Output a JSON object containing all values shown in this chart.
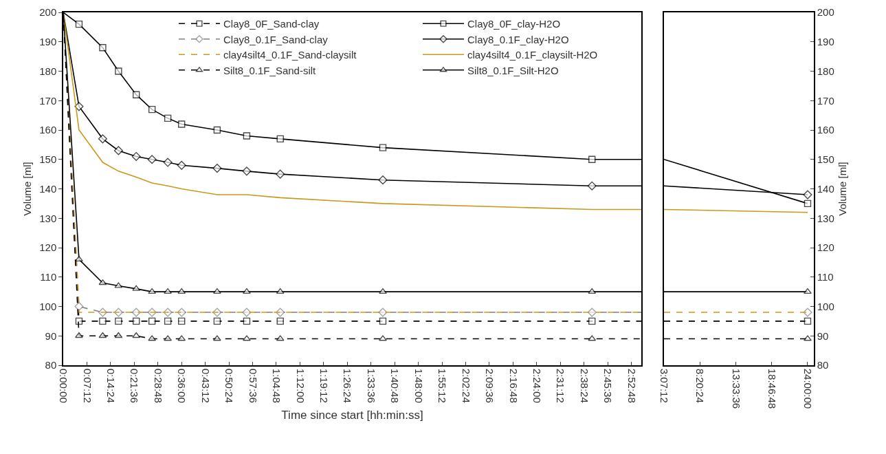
{
  "chart_data": [
    {
      "type": "line",
      "xlabel": "Time since start [hh:min:ss]",
      "ylabel": "Volume [ml]",
      "legend": "top",
      "xlim": [
        0,
        2.93
      ],
      "ylim": [
        80,
        200
      ],
      "yticks": [
        80,
        90,
        100,
        110,
        120,
        130,
        140,
        150,
        160,
        170,
        180,
        190,
        200
      ],
      "xticks": [
        {
          "value": 0,
          "label": "0:00:00"
        },
        {
          "value": 0.12,
          "label": "0:07:12"
        },
        {
          "value": 0.24,
          "label": "0:14:24"
        },
        {
          "value": 0.36,
          "label": "0:21:36"
        },
        {
          "value": 0.48,
          "label": "0:28:48"
        },
        {
          "value": 0.6,
          "label": "0:36:00"
        },
        {
          "value": 0.72,
          "label": "0:43:12"
        },
        {
          "value": 0.84,
          "label": "0:50:24"
        },
        {
          "value": 0.96,
          "label": "0:57:36"
        },
        {
          "value": 1.08,
          "label": "1:04:48"
        },
        {
          "value": 1.2,
          "label": "1:12:00"
        },
        {
          "value": 1.32,
          "label": "1:19:12"
        },
        {
          "value": 1.44,
          "label": "1:26:24"
        },
        {
          "value": 1.56,
          "label": "1:33:36"
        },
        {
          "value": 1.68,
          "label": "1:40:48"
        },
        {
          "value": 1.8,
          "label": "1:48:00"
        },
        {
          "value": 1.92,
          "label": "1:55:12"
        },
        {
          "value": 2.04,
          "label": "2:02:24"
        },
        {
          "value": 2.16,
          "label": "2:09:36"
        },
        {
          "value": 2.28,
          "label": "2:16:48"
        },
        {
          "value": 2.4,
          "label": "2:24:00"
        },
        {
          "value": 2.52,
          "label": "2:31:12"
        },
        {
          "value": 2.64,
          "label": "2:38:24"
        },
        {
          "value": 2.76,
          "label": "2:45:36"
        },
        {
          "value": 2.88,
          "label": "2:52:48"
        }
      ],
      "x": [
        0,
        0.08,
        0.2,
        0.28,
        0.37,
        0.45,
        0.53,
        0.6,
        0.78,
        0.93,
        1.1,
        1.62,
        2.68,
        2.93
      ],
      "series": [
        {
          "name": "Clay8_0F_Sand-clay",
          "color": "#000000",
          "line_style": "dashed",
          "marker": "square",
          "values": [
            200,
            95,
            95,
            95,
            95,
            95,
            95,
            95,
            95,
            95,
            95,
            95,
            95,
            95
          ]
        },
        {
          "name": "Clay8_0F_clay-H2O",
          "color": "#000000",
          "line_style": "solid",
          "marker": "square",
          "values": [
            200,
            196,
            188,
            180,
            172,
            167,
            164,
            162,
            160,
            158,
            157,
            154,
            150,
            150
          ]
        },
        {
          "name": "Clay8_0.1F_Sand-clay",
          "color": "#808080",
          "line_style": "dashed",
          "marker": "diamond",
          "values": [
            200,
            100,
            98,
            98,
            98,
            98,
            98,
            98,
            98,
            98,
            98,
            98,
            98,
            98
          ]
        },
        {
          "name": "Clay8_0.1F_clay-H2O",
          "color": "#000000",
          "line_style": "solid",
          "marker": "diamond",
          "values": [
            200,
            168,
            157,
            153,
            151,
            150,
            149,
            148,
            147,
            146,
            145,
            143,
            141,
            141
          ]
        },
        {
          "name": "clay4silt4_0.1F_Sand-claysilt",
          "color": "#c9991c",
          "line_style": "dashed",
          "marker": "none",
          "x": [
            0,
            0.08,
            2.93
          ],
          "values": [
            200,
            98,
            98
          ]
        },
        {
          "name": "clay4silt4_0.1F_claysilt-H2O",
          "color": "#c9991c",
          "line_style": "solid",
          "marker": "none",
          "values": [
            200,
            160,
            149,
            146,
            144,
            142,
            141,
            140,
            138,
            138,
            137,
            135,
            133,
            133
          ]
        },
        {
          "name": "Silt8_0.1F_Sand-silt",
          "color": "#000000",
          "line_style": "dashed",
          "marker": "triangle",
          "values": [
            200,
            90,
            90,
            90,
            90,
            89,
            89,
            89,
            89,
            89,
            89,
            89,
            89,
            89
          ]
        },
        {
          "name": "Silt8_0.1F_Silt-H2O",
          "color": "#000000",
          "line_style": "solid",
          "marker": "triangle",
          "values": [
            200,
            116,
            108,
            107,
            106,
            105,
            105,
            105,
            105,
            105,
            105,
            105,
            105,
            105
          ]
        }
      ]
    },
    {
      "type": "line",
      "ylabel": "Volume [ml]",
      "xlim": [
        3.12,
        24.9
      ],
      "ylim": [
        80,
        200
      ],
      "yticks": [
        80,
        90,
        100,
        110,
        120,
        130,
        140,
        150,
        160,
        170,
        180,
        190,
        200
      ],
      "xticks": [
        {
          "value": 3.12,
          "label": "3:07:12"
        },
        {
          "value": 8.34,
          "label": "8:20:24"
        },
        {
          "value": 13.56,
          "label": "13:33:36"
        },
        {
          "value": 18.78,
          "label": "18:46:48"
        },
        {
          "value": 24,
          "label": "24:00:00"
        }
      ],
      "x": [
        3.12,
        24
      ],
      "series": [
        {
          "color": "#000000",
          "line_style": "solid",
          "marker": "square",
          "values": [
            150,
            135
          ]
        },
        {
          "color": "#000000",
          "line_style": "solid",
          "marker": "diamond",
          "values": [
            141,
            138
          ]
        },
        {
          "color": "#c9991c",
          "line_style": "solid",
          "marker": "none",
          "values": [
            133,
            132
          ]
        },
        {
          "color": "#000000",
          "line_style": "solid",
          "marker": "triangle",
          "values": [
            105,
            105
          ]
        },
        {
          "color": "#808080",
          "line_style": "dashed",
          "marker": "diamond",
          "values": [
            null,
            98
          ]
        },
        {
          "color": "#c9991c",
          "line_style": "dashed",
          "marker": "none",
          "values": [
            98,
            98
          ]
        },
        {
          "color": "#000000",
          "line_style": "dashed",
          "marker": "square",
          "values": [
            95,
            95
          ]
        },
        {
          "color": "#000000",
          "line_style": "dashed",
          "marker": "triangle",
          "values": [
            89,
            89
          ]
        }
      ]
    }
  ]
}
